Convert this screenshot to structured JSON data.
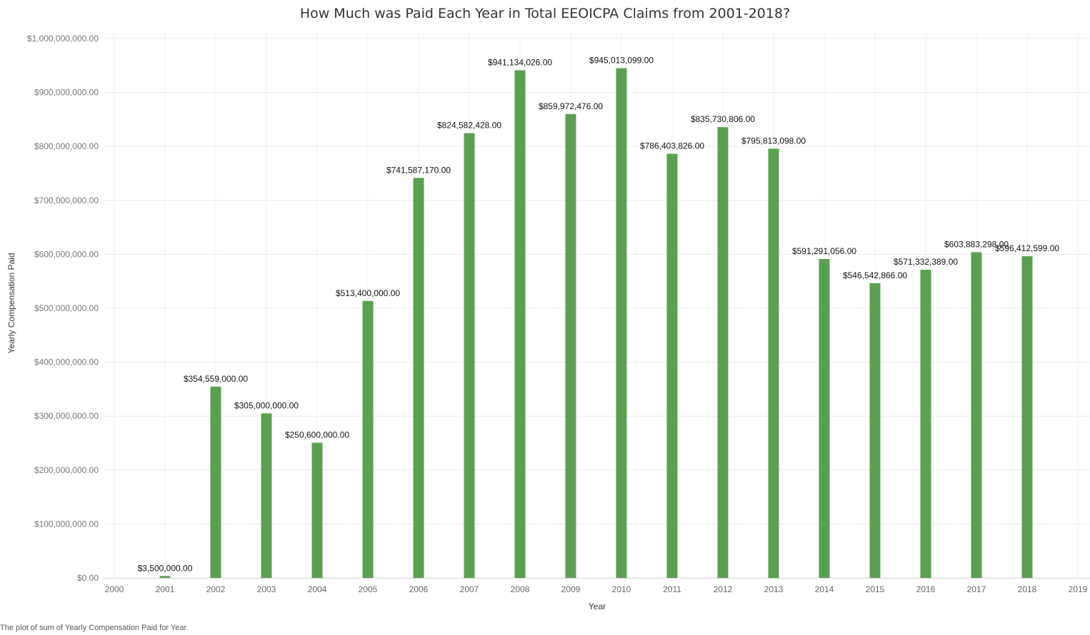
{
  "chart_data": {
    "type": "bar",
    "title": "How Much was Paid Each Year in Total EEOICPA Claims from 2001-2018?",
    "xlabel": "Year",
    "ylabel": "Yearly Compensation Paid",
    "caption": "The plot of sum of Yearly Compensation Paid for Year.",
    "x_ticks": [
      "2000",
      "2001",
      "2002",
      "2003",
      "2004",
      "2005",
      "2006",
      "2007",
      "2008",
      "2009",
      "2010",
      "2011",
      "2012",
      "2013",
      "2014",
      "2015",
      "2016",
      "2017",
      "2018",
      "2019"
    ],
    "x_range": [
      2000,
      2019
    ],
    "y_ticks": [
      {
        "value": 0,
        "label": "$0.00"
      },
      {
        "value": 100000000,
        "label": "$100,000,000.00"
      },
      {
        "value": 200000000,
        "label": "$200,000,000.00"
      },
      {
        "value": 300000000,
        "label": "$300,000,000.00"
      },
      {
        "value": 400000000,
        "label": "$400,000,000.00"
      },
      {
        "value": 500000000,
        "label": "$500,000,000.00"
      },
      {
        "value": 600000000,
        "label": "$600,000,000.00"
      },
      {
        "value": 700000000,
        "label": "$700,000,000.00"
      },
      {
        "value": 800000000,
        "label": "$800,000,000.00"
      },
      {
        "value": 900000000,
        "label": "$900,000,000.00"
      },
      {
        "value": 1000000000,
        "label": "$1,000,000,000.00"
      }
    ],
    "ylim": [
      0,
      1000000000
    ],
    "grid": true,
    "bar_color": "#59a14f",
    "bars": [
      {
        "x": 2001,
        "value": 3500000,
        "label": "$3,500,000.00"
      },
      {
        "x": 2002,
        "value": 354559000,
        "label": "$354,559,000.00"
      },
      {
        "x": 2003,
        "value": 305000000,
        "label": "$305,000,000.00"
      },
      {
        "x": 2004,
        "value": 250600000,
        "label": "$250,600,000.00"
      },
      {
        "x": 2005,
        "value": 513400000,
        "label": "$513,400,000.00"
      },
      {
        "x": 2006,
        "value": 741587170,
        "label": "$741,587,170.00"
      },
      {
        "x": 2007,
        "value": 824582428,
        "label": "$824,582,428.00"
      },
      {
        "x": 2008,
        "value": 941134026,
        "label": "$941,134,026.00"
      },
      {
        "x": 2009,
        "value": 859972476,
        "label": "$859,972,476.00"
      },
      {
        "x": 2010,
        "value": 945013099,
        "label": "$945,013,099.00"
      },
      {
        "x": 2011,
        "value": 786403826,
        "label": "$786,403,826.00"
      },
      {
        "x": 2012,
        "value": 835730806,
        "label": "$835,730,806.00"
      },
      {
        "x": 2013,
        "value": 795813098,
        "label": "$795,813,098.00"
      },
      {
        "x": 2014,
        "value": 591291056,
        "label": "$591,291,056.00"
      },
      {
        "x": 2015,
        "value": 546542866,
        "label": "$546,542,866.00"
      },
      {
        "x": 2016,
        "value": 571332389,
        "label": "$571,332,389.00"
      },
      {
        "x": 2017,
        "value": 603883298,
        "label": "$603,883,298.00"
      },
      {
        "x": 2018,
        "value": 596412599,
        "label": "$596,412,599.00"
      }
    ]
  }
}
